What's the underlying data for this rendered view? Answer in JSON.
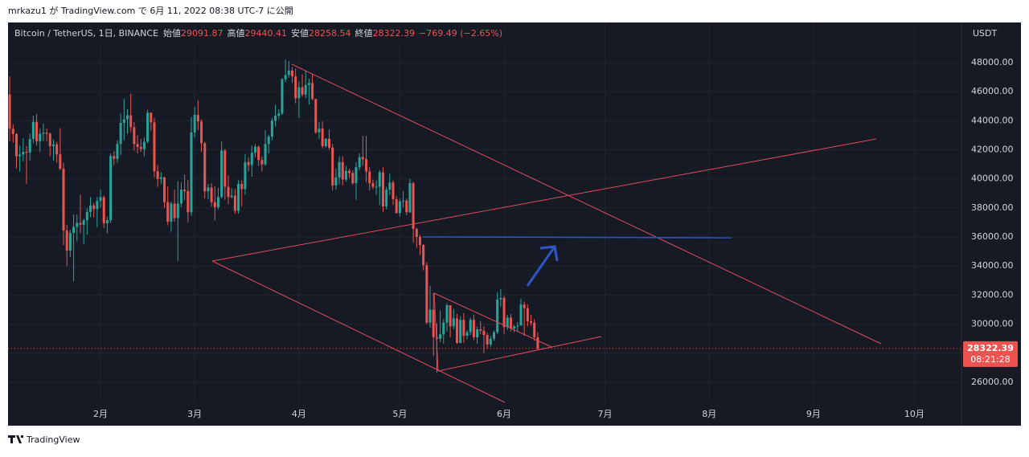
{
  "header": {
    "text": "mrkazu1 が TradingView.com で 6月 11, 2022 08:38 UTC-7 に公開"
  },
  "footer": {
    "text": "TradingView"
  },
  "chart_data": {
    "type": "candlestick",
    "symbol": "Bitcoin / TetherUS, 1日, BINANCE",
    "open_label": "始値",
    "high_label": "高値",
    "low_label": "安値",
    "close_label": "終値",
    "change_label": "−769.49 (−2.65%)",
    "countdown": "08:21:28",
    "unit": "USDT",
    "up_color": "#26a69a",
    "down_color": "#ef5350",
    "xlim": [
      4.5,
      288
    ],
    "ylim": [
      24670,
      50650
    ],
    "xticks": [
      {
        "value": 32,
        "label": "2月"
      },
      {
        "value": 60,
        "label": "3月"
      },
      {
        "value": 91,
        "label": "4月"
      },
      {
        "value": 121,
        "label": "5月"
      },
      {
        "value": 152,
        "label": "6月"
      },
      {
        "value": 182,
        "label": "7月"
      },
      {
        "value": 213,
        "label": "8月"
      },
      {
        "value": 244,
        "label": "9月"
      },
      {
        "value": 274,
        "label": "10月"
      }
    ],
    "yticks": [
      {
        "value": 26000,
        "label": "26000.00"
      },
      {
        "value": 28000,
        "label": "28000.00"
      },
      {
        "value": 30000,
        "label": "30000.00"
      },
      {
        "value": 32000,
        "label": "32000.00"
      },
      {
        "value": 34000,
        "label": "34000.00"
      },
      {
        "value": 36000,
        "label": "36000.00"
      },
      {
        "value": 38000,
        "label": "38000.00"
      },
      {
        "value": 40000,
        "label": "40000.00"
      },
      {
        "value": 42000,
        "label": "42000.00"
      },
      {
        "value": 44000,
        "label": "44000.00"
      },
      {
        "value": 46000,
        "label": "46000.00"
      },
      {
        "value": 48000,
        "label": "48000.00"
      }
    ],
    "grid": true,
    "x": [
      5,
      6,
      7,
      8,
      9,
      10,
      11,
      12,
      13,
      14,
      15,
      16,
      17,
      18,
      19,
      20,
      21,
      22,
      23,
      24,
      25,
      26,
      27,
      28,
      29,
      30,
      31,
      32,
      33,
      34,
      35,
      36,
      37,
      38,
      39,
      40,
      41,
      42,
      43,
      44,
      45,
      46,
      47,
      48,
      49,
      50,
      51,
      52,
      53,
      54,
      55,
      56,
      57,
      58,
      59,
      60,
      61,
      62,
      63,
      64,
      65,
      66,
      67,
      68,
      69,
      70,
      71,
      72,
      73,
      74,
      75,
      76,
      77,
      78,
      79,
      80,
      81,
      82,
      83,
      84,
      85,
      86,
      87,
      88,
      89,
      90,
      91,
      92,
      93,
      94,
      95,
      96,
      97,
      98,
      99,
      100,
      101,
      102,
      103,
      104,
      105,
      106,
      107,
      108,
      109,
      110,
      111,
      112,
      113,
      114,
      115,
      116,
      117,
      118,
      119,
      120,
      121,
      122,
      123,
      124,
      125,
      126,
      127,
      128,
      129,
      130,
      131,
      132,
      133,
      134,
      135,
      136,
      137,
      138,
      139,
      140,
      141,
      142,
      143,
      144,
      145,
      146,
      147,
      148,
      149,
      150,
      151,
      152,
      153,
      154,
      155,
      156,
      157,
      158,
      159,
      160,
      161,
      162
    ],
    "ohlc": [
      [
        45800,
        47050,
        42600,
        43450
      ],
      [
        43450,
        43750,
        42500,
        43080
      ],
      [
        43080,
        43150,
        40700,
        41550
      ],
      [
        41550,
        42300,
        40500,
        41670
      ],
      [
        41670,
        42800,
        41200,
        41860
      ],
      [
        41860,
        42250,
        39650,
        41830
      ],
      [
        41830,
        43100,
        41270,
        42740
      ],
      [
        42740,
        44350,
        42450,
        43920
      ],
      [
        43920,
        44450,
        42300,
        42590
      ],
      [
        42590,
        43450,
        41850,
        43100
      ],
      [
        43100,
        43800,
        42600,
        43180
      ],
      [
        43180,
        43480,
        42600,
        43110
      ],
      [
        43110,
        43180,
        41550,
        42250
      ],
      [
        42250,
        42700,
        41250,
        42380
      ],
      [
        42380,
        42550,
        41100,
        41680
      ],
      [
        41680,
        43500,
        40600,
        40700
      ],
      [
        40700,
        41100,
        35450,
        36450
      ],
      [
        36450,
        36850,
        34000,
        35070
      ],
      [
        35070,
        36500,
        34600,
        36280
      ],
      [
        36280,
        37550,
        32950,
        36690
      ],
      [
        36690,
        37550,
        35700,
        36970
      ],
      [
        36970,
        38920,
        36250,
        36840
      ],
      [
        36840,
        37250,
        35500,
        37150
      ],
      [
        37150,
        38000,
        36150,
        37720
      ],
      [
        37720,
        38750,
        37350,
        38170
      ],
      [
        38170,
        38350,
        37350,
        37920
      ],
      [
        37920,
        38750,
        36650,
        38480
      ],
      [
        38480,
        39250,
        38000,
        38740
      ],
      [
        38740,
        38850,
        36600,
        36950
      ],
      [
        36950,
        37400,
        36250,
        37150
      ],
      [
        37150,
        41750,
        36950,
        41570
      ],
      [
        41570,
        41900,
        40950,
        41380
      ],
      [
        41380,
        42650,
        41100,
        42400
      ],
      [
        42400,
        44500,
        41650,
        43850
      ],
      [
        43850,
        45500,
        42650,
        44100
      ],
      [
        44100,
        44800,
        43100,
        44380
      ],
      [
        44380,
        45850,
        43200,
        43550
      ],
      [
        43550,
        43900,
        41950,
        42400
      ],
      [
        42400,
        43000,
        41750,
        42200
      ],
      [
        42200,
        42750,
        41850,
        42050
      ],
      [
        42050,
        42850,
        41550,
        42550
      ],
      [
        42550,
        44750,
        42450,
        44550
      ],
      [
        44550,
        44550,
        43300,
        43880
      ],
      [
        43880,
        44200,
        40100,
        40520
      ],
      [
        40520,
        40950,
        39450,
        40000
      ],
      [
        40000,
        40450,
        39650,
        40100
      ],
      [
        40100,
        40150,
        38000,
        38400
      ],
      [
        38400,
        39500,
        36800,
        37050
      ],
      [
        37050,
        38450,
        36350,
        38300
      ],
      [
        38300,
        39250,
        37050,
        37300
      ],
      [
        37300,
        39850,
        34350,
        38300
      ],
      [
        38300,
        39750,
        38050,
        39250
      ],
      [
        39250,
        40300,
        38550,
        39150
      ],
      [
        39150,
        39900,
        37000,
        37700
      ],
      [
        37700,
        44250,
        37450,
        43200
      ],
      [
        43200,
        44950,
        42850,
        44400
      ],
      [
        44400,
        45400,
        43350,
        43950
      ],
      [
        43950,
        44100,
        41850,
        42450
      ],
      [
        42450,
        42550,
        38650,
        39150
      ],
      [
        39150,
        39650,
        38600,
        39400
      ],
      [
        39400,
        39700,
        38100,
        38400
      ],
      [
        38400,
        39500,
        37150,
        38050
      ],
      [
        38050,
        39400,
        37900,
        38750
      ],
      [
        38750,
        42600,
        38650,
        41950
      ],
      [
        41950,
        42050,
        38550,
        39450
      ],
      [
        39450,
        40250,
        38250,
        38750
      ],
      [
        38750,
        39350,
        38650,
        38850
      ],
      [
        38850,
        39300,
        37600,
        37800
      ],
      [
        37800,
        39900,
        37600,
        39650
      ],
      [
        39650,
        39900,
        38100,
        39300
      ],
      [
        39300,
        41700,
        38900,
        41150
      ],
      [
        41150,
        41500,
        40500,
        40950
      ],
      [
        40950,
        42300,
        40150,
        41800
      ],
      [
        41800,
        42400,
        41500,
        42200
      ],
      [
        42200,
        42300,
        40900,
        41300
      ],
      [
        41300,
        41550,
        40500,
        41000
      ],
      [
        41000,
        43350,
        40900,
        42400
      ],
      [
        42400,
        43050,
        41750,
        42900
      ],
      [
        42900,
        44200,
        42650,
        44000
      ],
      [
        44000,
        45100,
        43600,
        44350
      ],
      [
        44350,
        44800,
        44100,
        44500
      ],
      [
        44500,
        46950,
        44400,
        46850
      ],
      [
        46850,
        48200,
        46650,
        47150
      ],
      [
        47150,
        48100,
        46950,
        47450
      ],
      [
        47450,
        47700,
        46600,
        47050
      ],
      [
        47050,
        47600,
        45200,
        45550
      ],
      [
        45550,
        46700,
        44200,
        46300
      ],
      [
        46300,
        47200,
        45650,
        45800
      ],
      [
        45800,
        47450,
        45550,
        46450
      ],
      [
        46450,
        46900,
        45100,
        46600
      ],
      [
        46600,
        47200,
        45400,
        45500
      ],
      [
        45500,
        45500,
        43100,
        43200
      ],
      [
        43200,
        43900,
        42750,
        43450
      ],
      [
        43450,
        43950,
        42100,
        42250
      ],
      [
        42250,
        42800,
        42150,
        42750
      ],
      [
        42750,
        43400,
        42000,
        42150
      ],
      [
        42150,
        42400,
        39200,
        39550
      ],
      [
        39550,
        40700,
        39250,
        40100
      ],
      [
        40100,
        41550,
        39600,
        41150
      ],
      [
        41150,
        41550,
        39550,
        39950
      ],
      [
        39950,
        40900,
        39800,
        40550
      ],
      [
        40550,
        40700,
        40050,
        40400
      ],
      [
        40400,
        40600,
        39600,
        39700
      ],
      [
        39700,
        41150,
        38550,
        40800
      ],
      [
        40800,
        41750,
        40600,
        41500
      ],
      [
        41500,
        42950,
        40900,
        41350
      ],
      [
        41350,
        42950,
        39750,
        40500
      ],
      [
        40500,
        40800,
        39200,
        39700
      ],
      [
        39700,
        39950,
        39300,
        39450
      ],
      [
        39450,
        39900,
        38900,
        39450
      ],
      [
        39450,
        40600,
        38200,
        40450
      ],
      [
        40450,
        40800,
        37700,
        38100
      ],
      [
        38100,
        39450,
        37900,
        39250
      ],
      [
        39250,
        40350,
        38900,
        39750
      ],
      [
        39750,
        39900,
        38200,
        38600
      ],
      [
        38600,
        38800,
        37600,
        37650
      ],
      [
        37650,
        38650,
        37400,
        38450
      ],
      [
        38450,
        39150,
        38050,
        38500
      ],
      [
        38500,
        38650,
        37500,
        37700
      ],
      [
        37700,
        40000,
        37650,
        39700
      ],
      [
        39700,
        39800,
        35600,
        36550
      ],
      [
        36550,
        36650,
        35250,
        36000
      ],
      [
        36000,
        36150,
        34750,
        35450
      ],
      [
        35450,
        35500,
        33700,
        34050
      ],
      [
        34050,
        34250,
        30000,
        30100
      ],
      [
        30100,
        32650,
        29750,
        31000
      ],
      [
        31000,
        32150,
        27800,
        29100
      ],
      [
        29100,
        30050,
        26650,
        29000
      ],
      [
        29000,
        30950,
        28750,
        29300
      ],
      [
        29300,
        30350,
        28650,
        30100
      ],
      [
        30100,
        31450,
        29500,
        31300
      ],
      [
        31300,
        31300,
        29100,
        29850
      ],
      [
        29850,
        31050,
        29650,
        30400
      ],
      [
        30400,
        30700,
        28650,
        28700
      ],
      [
        28700,
        30550,
        28700,
        30300
      ],
      [
        30300,
        30750,
        28700,
        29200
      ],
      [
        29200,
        29600,
        28950,
        29450
      ],
      [
        29450,
        30450,
        29250,
        30300
      ],
      [
        30300,
        30650,
        28900,
        29100
      ],
      [
        29100,
        29850,
        28650,
        29650
      ],
      [
        29650,
        30200,
        29300,
        29550
      ],
      [
        29550,
        29850,
        28000,
        29250
      ],
      [
        29250,
        29400,
        28300,
        28600
      ],
      [
        28600,
        29200,
        28450,
        29000
      ],
      [
        29000,
        29550,
        28850,
        29450
      ],
      [
        29450,
        32200,
        29300,
        31700
      ],
      [
        31700,
        32400,
        31200,
        31800
      ],
      [
        31800,
        31950,
        29300,
        29800
      ],
      [
        29800,
        30650,
        29600,
        30450
      ],
      [
        30450,
        30700,
        29500,
        29700
      ],
      [
        29700,
        29950,
        29450,
        29850
      ],
      [
        29850,
        30150,
        29500,
        29900
      ],
      [
        29900,
        31750,
        29900,
        31350
      ],
      [
        31350,
        31550,
        29200,
        31100
      ],
      [
        31100,
        31350,
        29850,
        30200
      ],
      [
        30200,
        30650,
        29900,
        30100
      ],
      [
        30100,
        30350,
        28850,
        29100
      ],
      [
        29091.87,
        29440.41,
        28258.54,
        28322.39
      ]
    ]
  }
}
